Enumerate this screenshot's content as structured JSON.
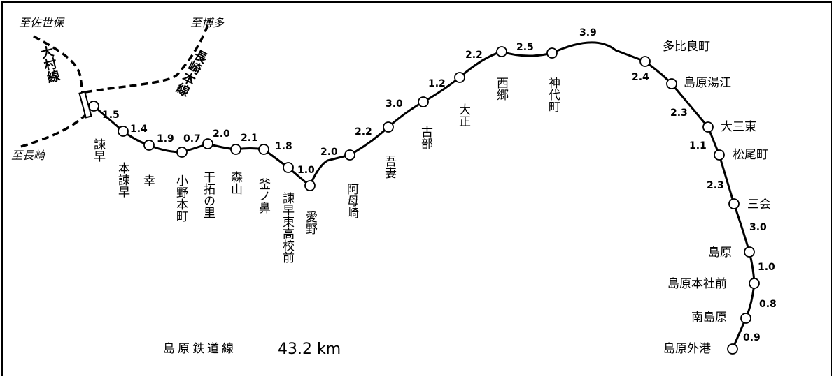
{
  "title": "島原鉄道線",
  "total_length": "43.2 km",
  "destinations": [
    "至佐世保",
    "至博多",
    "至長崎"
  ],
  "other_lines": [
    "大村線",
    "長崎本線"
  ],
  "stations": [
    {
      "name": "諫早",
      "dist_to_next": "1.5"
    },
    {
      "name": "本諫早",
      "dist_to_next": "1.4"
    },
    {
      "name": "幸",
      "dist_to_next": "1.9"
    },
    {
      "name": "小野本町",
      "dist_to_next": "0.7"
    },
    {
      "name": "干拓の里",
      "dist_to_next": "2.0"
    },
    {
      "name": "森山",
      "dist_to_next": "2.1"
    },
    {
      "name": "釜ノ鼻",
      "dist_to_next": "1.8"
    },
    {
      "name": "諫早東高校前",
      "dist_to_next": "1.0"
    },
    {
      "name": "愛野",
      "dist_to_next": "2.0"
    },
    {
      "name": "阿母崎",
      "dist_to_next": "2.2"
    },
    {
      "name": "吾妻",
      "dist_to_next": "3.0"
    },
    {
      "name": "古部",
      "dist_to_next": "1.2"
    },
    {
      "name": "大正",
      "dist_to_next": "2.2"
    },
    {
      "name": "西郷",
      "dist_to_next": "2.5"
    },
    {
      "name": "神代町",
      "dist_to_next": "3.9"
    },
    {
      "name": "多比良町",
      "dist_to_next": "2.4"
    },
    {
      "name": "島原湯江",
      "dist_to_next": "2.3"
    },
    {
      "name": "大三東",
      "dist_to_next": "1.1"
    },
    {
      "name": "松尾町",
      "dist_to_next": "2.3"
    },
    {
      "name": "三会",
      "dist_to_next": "3.0"
    },
    {
      "name": "島原",
      "dist_to_next": "1.0"
    },
    {
      "name": "島原本社前",
      "dist_to_next": "0.8"
    },
    {
      "name": "南島原",
      "dist_to_next": "0.9"
    },
    {
      "name": "島原外港",
      "dist_to_next": ""
    }
  ]
}
